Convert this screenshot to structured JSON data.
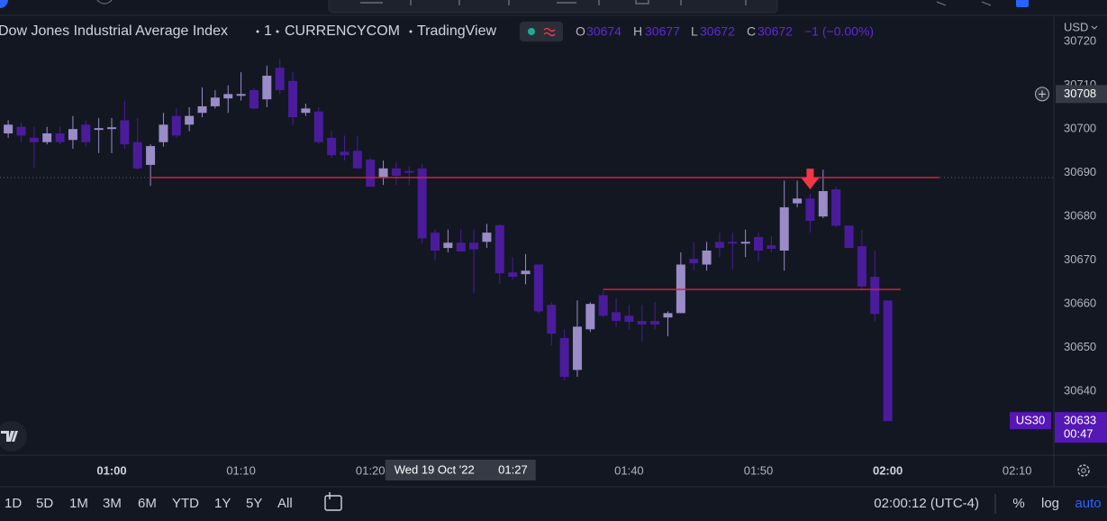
{
  "chart_data": {
    "type": "candlestick",
    "categories": [
      "00:52",
      "00:53",
      "00:54",
      "00:55",
      "00:56",
      "00:57",
      "00:58",
      "00:59",
      "01:00",
      "01:01",
      "01:02",
      "01:03",
      "01:04",
      "01:05",
      "01:06",
      "01:07",
      "01:08",
      "01:09",
      "01:10",
      "01:11",
      "01:12",
      "01:13",
      "01:14",
      "01:15",
      "01:16",
      "01:17",
      "01:18",
      "01:19",
      "01:20",
      "01:21",
      "01:22",
      "01:23",
      "01:24",
      "01:25",
      "01:26",
      "01:27",
      "01:28",
      "01:29",
      "01:30",
      "01:31",
      "01:32",
      "01:33",
      "01:34",
      "01:35",
      "01:36",
      "01:37",
      "01:38",
      "01:39",
      "01:40",
      "01:41",
      "01:42",
      "01:43",
      "01:44",
      "01:45",
      "01:46",
      "01:47",
      "01:48",
      "01:49",
      "01:50",
      "01:51",
      "01:52",
      "01:53",
      "01:54",
      "01:55",
      "01:56",
      "01:57",
      "01:58",
      "01:59",
      "02:00"
    ],
    "open": [
      30699,
      30700.5,
      30698,
      30697,
      30699,
      30697.5,
      30701,
      30699.8,
      30700,
      30702,
      30697,
      30691.8,
      30697,
      30703,
      30701,
      30703.7,
      30705.2,
      30707,
      30707.6,
      30708.9,
      30706.8,
      30714,
      30711,
      30703.7,
      30704,
      30698,
      30694.8,
      30695,
      30693,
      30689,
      30691,
      30690.4,
      30691,
      30676.3,
      30672.8,
      30674,
      30674,
      30674.2,
      30678,
      30667.2,
      30666.8,
      30669,
      30659.8,
      30652.2,
      30644.9,
      30654.2,
      30662,
      30658.1,
      30657.3,
      30656.1,
      30656.1,
      30656.9,
      30657.9,
      30670.3,
      30669,
      30674.2,
      30674.2,
      30673.8,
      30675.3,
      30673.4,
      30672.2,
      30683,
      30684.1,
      30680,
      30686.2,
      30677.9,
      30673.2,
      30666.2,
      30660.8
    ],
    "high": [
      30702,
      30701.5,
      30700.5,
      30700.5,
      30700.5,
      30703,
      30702,
      30702.5,
      30702.5,
      30706.5,
      30702.5,
      30696.5,
      30703.7,
      30704.7,
      30705,
      30709.5,
      30708.9,
      30710,
      30713,
      30709.5,
      30714.5,
      30716,
      30713,
      30705.8,
      30705,
      30699.5,
      30698.5,
      30698.5,
      30693.4,
      30692.8,
      30692.4,
      30691.4,
      30692,
      30677,
      30677,
      30677,
      30677,
      30678.3,
      30678.3,
      30670.7,
      30671.4,
      30669,
      30660.4,
      30654.2,
      30660.8,
      30660.4,
      30663,
      30661.4,
      30659.8,
      30659.8,
      30660.4,
      30658.3,
      30671.8,
      30674.2,
      30674.2,
      30676.3,
      30676.3,
      30677,
      30676.3,
      30675.5,
      30688.2,
      30688.2,
      30685.2,
      30690.7,
      30686.8,
      30677.9,
      30676.9,
      30672.2,
      30660.8
    ],
    "low": [
      30698,
      30697,
      30691,
      30696.5,
      30696.5,
      30695.5,
      30696,
      30694.5,
      30694.5,
      30695.5,
      30690.7,
      30687,
      30696,
      30698,
      30699.5,
      30702.7,
      30704.7,
      30703.7,
      30706.5,
      30704.5,
      30705,
      30708,
      30701,
      30703,
      30696.5,
      30693.4,
      30692.8,
      30691,
      30686.8,
      30687.2,
      30687.2,
      30687.2,
      30673.8,
      30670,
      30671.8,
      30672,
      30662.5,
      30672.8,
      30664.6,
      30665.6,
      30664.5,
      30657.9,
      30650.5,
      30642.5,
      30643.3,
      30653.6,
      30656.9,
      30654.8,
      30654.2,
      30651.5,
      30654.2,
      30652.6,
      30657.9,
      30667.6,
      30667.6,
      30670.7,
      30668,
      30670.7,
      30669.7,
      30671.8,
      30667.6,
      30682.1,
      30676.3,
      30679.6,
      30677.5,
      30672.8,
      30663.1,
      30656.1,
      30633.2
    ],
    "close": [
      30701,
      30698.5,
      30697,
      30699,
      30697,
      30700,
      30697,
      30700.2,
      30700.4,
      30696.5,
      30691,
      30696.1,
      30701,
      30698.5,
      30703,
      30705.2,
      30707.2,
      30708,
      30708,
      30704.7,
      30712.2,
      30708.9,
      30702.7,
      30704.7,
      30697,
      30694,
      30694,
      30691,
      30686.8,
      30691,
      30689.3,
      30690,
      30675,
      30672.2,
      30674,
      30672,
      30672.5,
      30676.3,
      30667,
      30666.2,
      30667.6,
      30658.3,
      30653.2,
      30643.3,
      30654.8,
      30660,
      30657.3,
      30656.1,
      30655.9,
      30655.3,
      30655.3,
      30657.9,
      30669,
      30669.3,
      30672.2,
      30672.8,
      30673.8,
      30674.2,
      30672.2,
      30672.6,
      30682.1,
      30684.1,
      30679,
      30685.8,
      30677.9,
      30672.8,
      30664,
      30657.7,
      30633.2
    ],
    "up_color": "#9a8cc8",
    "down_color": "#4a1c9c",
    "ylim": [
      30625.4,
      30725.8
    ],
    "yticks": [
      30640,
      30650,
      30660,
      30670,
      30680,
      30690,
      30700,
      30710,
      30720
    ],
    "xticks": [
      "01:00",
      "01:10",
      "01:20",
      "01:40",
      "01:50",
      "02:00",
      "02:10"
    ],
    "grid": false,
    "hlines": [
      {
        "value": 30688.9,
        "start": "01:03",
        "end": "02:04",
        "color": "#d1223b"
      },
      {
        "value": 30663.3,
        "start": "01:38",
        "end": "02:01",
        "color": "#d1223b"
      }
    ],
    "arrow": {
      "time": "01:54",
      "value": 30686.2,
      "color": "#f23645"
    },
    "currency": "USD",
    "crosshair": {
      "price": 30708,
      "date": "Wed 19 Oct '22",
      "time": "01:27"
    },
    "last_price": {
      "symbol": "US30",
      "value": 30633.2,
      "label": "30633",
      "countdown": "00:47",
      "color": "#5517b5"
    }
  },
  "ui": {
    "symbol": "Dow Jones Industrial Average Index",
    "interval": "1",
    "exchange": "CURRENCYCOM",
    "source": "TradingView",
    "legend": {
      "open_label": "O",
      "open": 30674,
      "high_label": "H",
      "high": 30677,
      "low_label": "L",
      "low": 30672,
      "close_label": "C",
      "close": 30672,
      "change": "−1 (−0.00%)"
    },
    "ranges": [
      "1D",
      "5D",
      "1M",
      "3M",
      "6M",
      "YTD",
      "1Y",
      "5Y",
      "All"
    ],
    "clock": "02:00:12 (UTC-4)",
    "scale_options": [
      "%",
      "log",
      "auto"
    ]
  }
}
